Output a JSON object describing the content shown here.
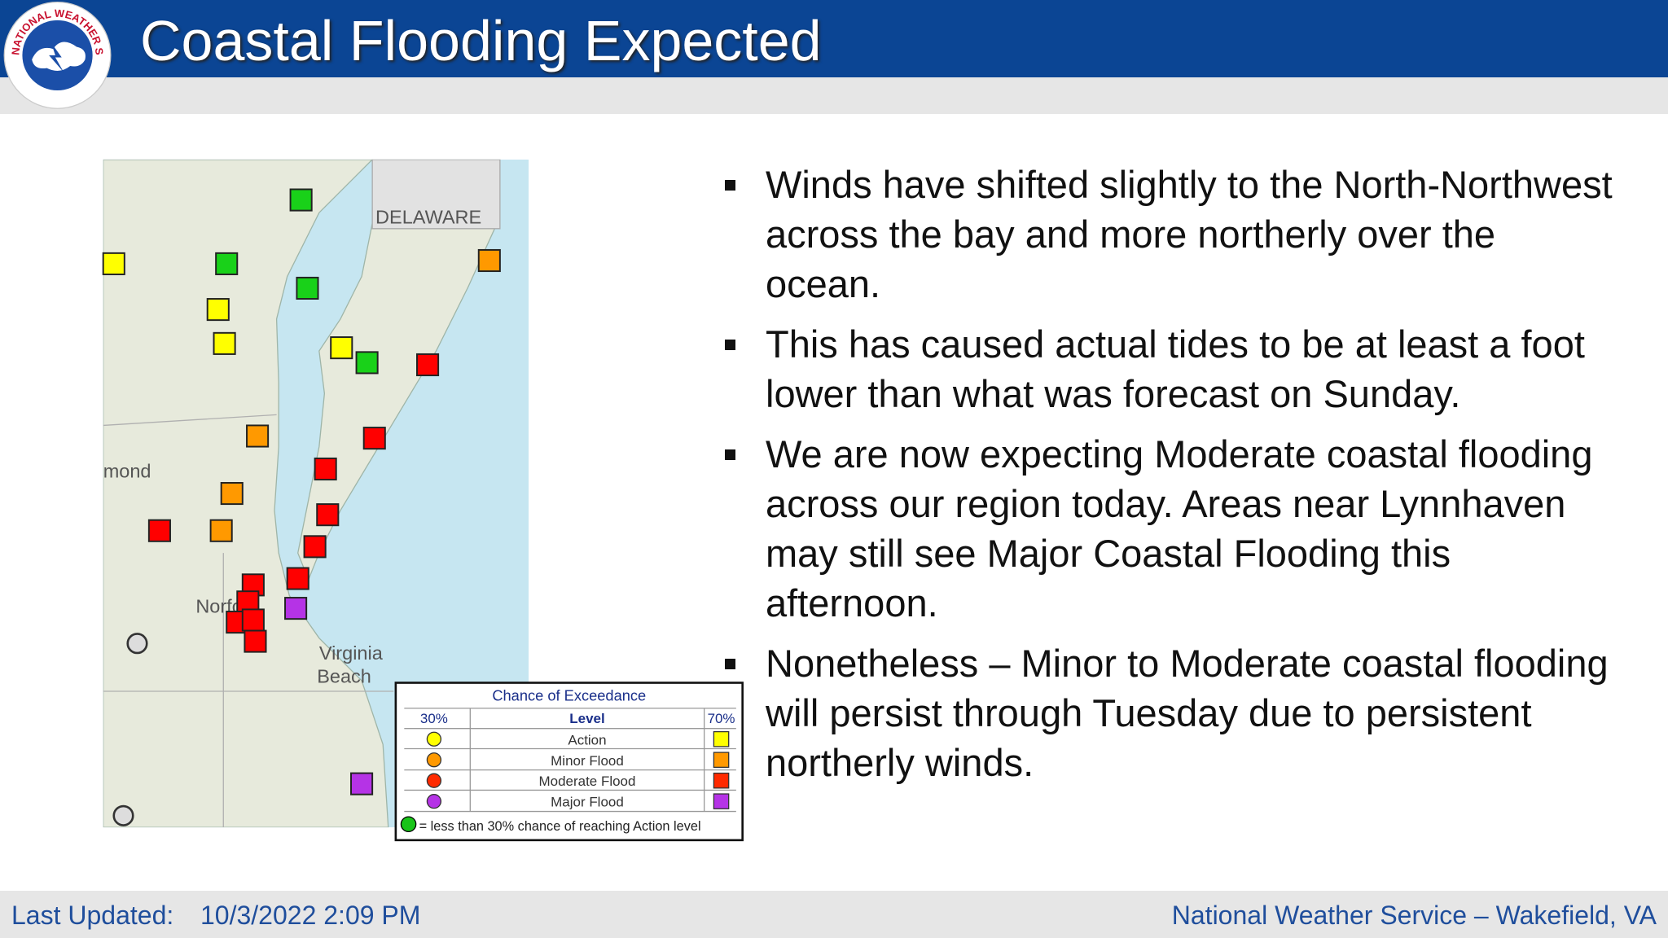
{
  "header": {
    "title": "Coastal Flooding Expected",
    "logo_text": "NATIONAL WEATHER SERVICE"
  },
  "map": {
    "labels": [
      "DELAWARE",
      "mond",
      "Norfolk",
      "Virginia",
      "Beach"
    ],
    "legend": {
      "title": "Chance of Exceedance",
      "columns": [
        "30%",
        "Level",
        "70%"
      ],
      "levels": [
        "Action",
        "Minor Flood",
        "Moderate Flood",
        "Major Flood"
      ],
      "note": "= less than 30% chance of reaching Action level"
    }
  },
  "bullets": [
    "Winds have shifted slightly to the North-Northwest across the bay and more northerly over the ocean.",
    "This has caused actual tides to be at least a foot lower than what was forecast on Sunday.",
    "We are now expecting Moderate coastal flooding across our region today. Areas near Lynnhaven may still see Major Coastal Flooding this afternoon.",
    "Nonetheless – Minor to Moderate coastal flooding will persist through Tuesday due to persistent northerly winds."
  ],
  "footer": {
    "label": "Last Updated:",
    "date": "10/3/2022 2:09 PM",
    "office": "National Weather Service – Wakefield, VA"
  }
}
